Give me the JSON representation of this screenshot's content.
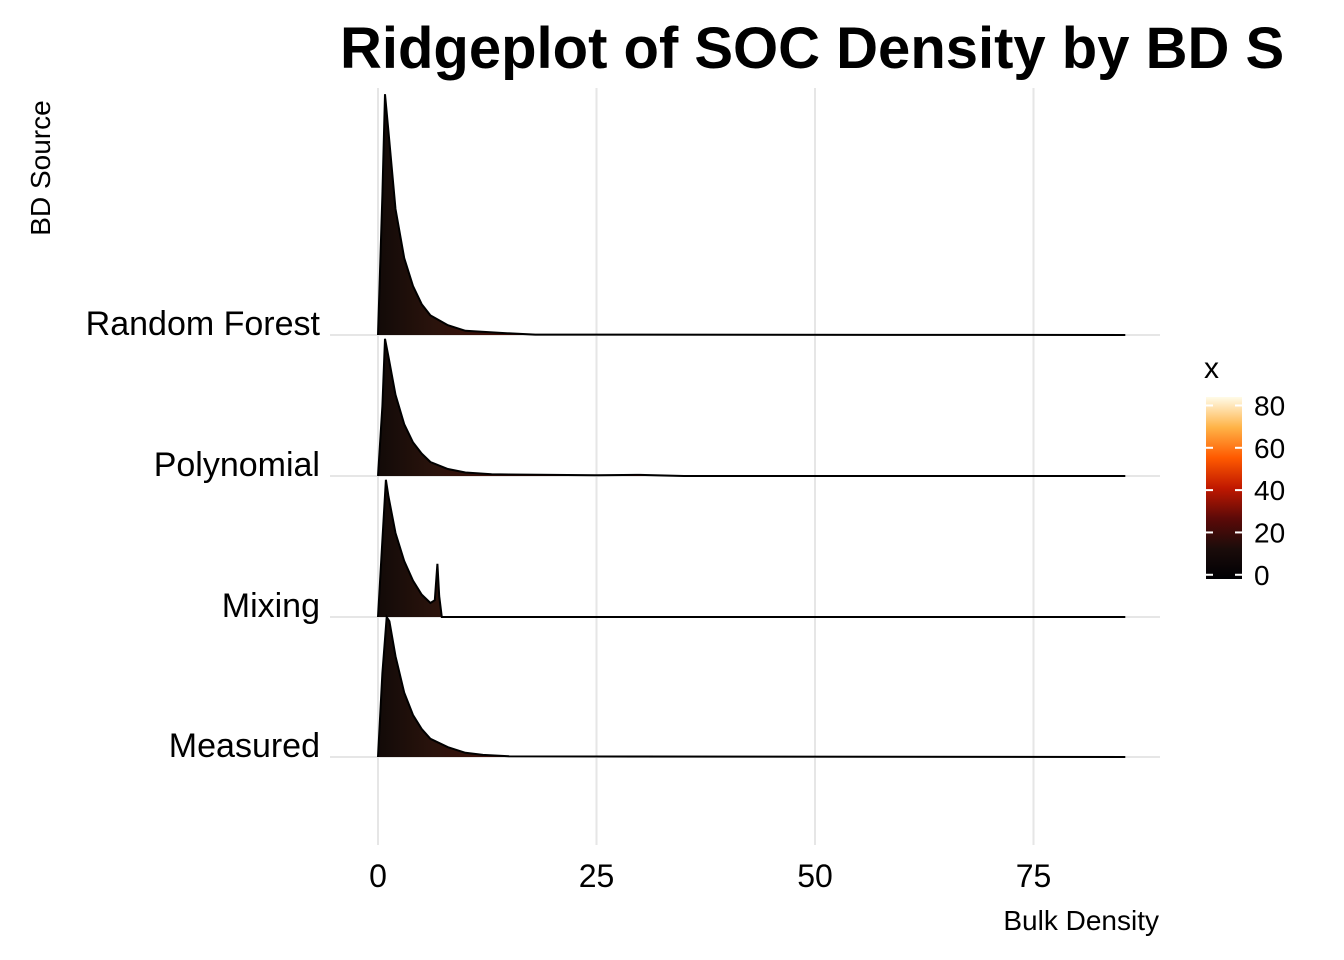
{
  "chart_data": {
    "type": "area",
    "subtype": "ridgeline",
    "title": "Ridgeplot of SOC Density by BD S",
    "xlabel": "Bulk Density",
    "ylabel": "BD Source",
    "xlim": [
      -1,
      89
    ],
    "x_ticks": [
      0,
      25,
      50,
      75
    ],
    "grid": true,
    "legend": {
      "title": "x",
      "placement": "right",
      "ticks": [
        0,
        20,
        40,
        60,
        80
      ],
      "range": [
        -2,
        84
      ],
      "colors": [
        "#000004",
        "#1b0c0a",
        "#5c0a08",
        "#c01800",
        "#ff5a00",
        "#ffb347",
        "#fffbe8"
      ]
    },
    "categories": [
      "Measured",
      "Mixing",
      "Polynomial",
      "Random Forest"
    ],
    "series": [
      {
        "name": "Measured",
        "x": [
          0,
          0.5,
          1,
          1.3,
          2,
          3,
          4,
          5,
          6,
          8,
          10,
          12,
          15,
          85.5
        ],
        "density": [
          0,
          0.6,
          1.0,
          0.97,
          0.72,
          0.46,
          0.3,
          0.2,
          0.13,
          0.07,
          0.03,
          0.015,
          0.005,
          0
        ]
      },
      {
        "name": "Mixing",
        "x": [
          0,
          0.5,
          0.9,
          1.2,
          2,
          3,
          4,
          5,
          6,
          6.5,
          6.8,
          7,
          7.3,
          85.5
        ],
        "density": [
          0,
          0.55,
          0.98,
          0.86,
          0.6,
          0.4,
          0.26,
          0.16,
          0.1,
          0.12,
          0.38,
          0.15,
          0,
          0
        ]
      },
      {
        "name": "Polynomial",
        "x": [
          0,
          0.5,
          0.8,
          1.2,
          2,
          3,
          4,
          5,
          6,
          8,
          10,
          13,
          20,
          25,
          30,
          35,
          85.5
        ],
        "density": [
          0,
          0.5,
          0.98,
          0.85,
          0.58,
          0.37,
          0.24,
          0.16,
          0.1,
          0.05,
          0.025,
          0.012,
          0.008,
          0.006,
          0.008,
          0,
          0
        ]
      },
      {
        "name": "Random Forest",
        "x": [
          0,
          0.5,
          0.8,
          1.2,
          2,
          3,
          4,
          5,
          6,
          8,
          10,
          14,
          18,
          85.5
        ],
        "density": [
          0,
          1.0,
          1.72,
          1.45,
          0.9,
          0.55,
          0.35,
          0.22,
          0.14,
          0.07,
          0.03,
          0.015,
          0.003,
          0
        ]
      }
    ]
  }
}
